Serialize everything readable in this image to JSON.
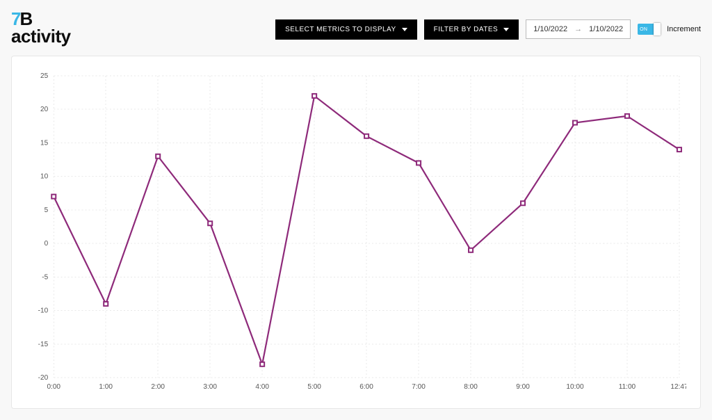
{
  "brand": {
    "seven": "7",
    "b": "B"
  },
  "page_title": "activity",
  "controls": {
    "metrics_btn": "SELECT METRICS TO DISPLAY",
    "filter_btn": "FILTER BY DATES",
    "date_from": "1/10/2022",
    "date_to": "1/10/2022",
    "toggle_text": "ON",
    "toggle_label": "Increment"
  },
  "chart": {
    "type": "line",
    "ylim": [
      -20,
      25
    ],
    "ytick_step": 5,
    "x_labels": [
      "0:00",
      "1:00",
      "2:00",
      "3:00",
      "4:00",
      "5:00",
      "6:00",
      "7:00",
      "8:00",
      "9:00",
      "10:00",
      "11:00",
      "12:47"
    ],
    "values": [
      7,
      -9,
      13,
      3,
      -18,
      22,
      16,
      12,
      -1,
      6,
      18,
      19,
      14
    ],
    "line_color": "#8e2a7a",
    "marker_color": "#8e2a7a",
    "grid_color": "#e8e8e8",
    "background_color": "#ffffff",
    "axis_label_fontsize": 10,
    "line_width": 2.2,
    "marker_size": 3
  }
}
